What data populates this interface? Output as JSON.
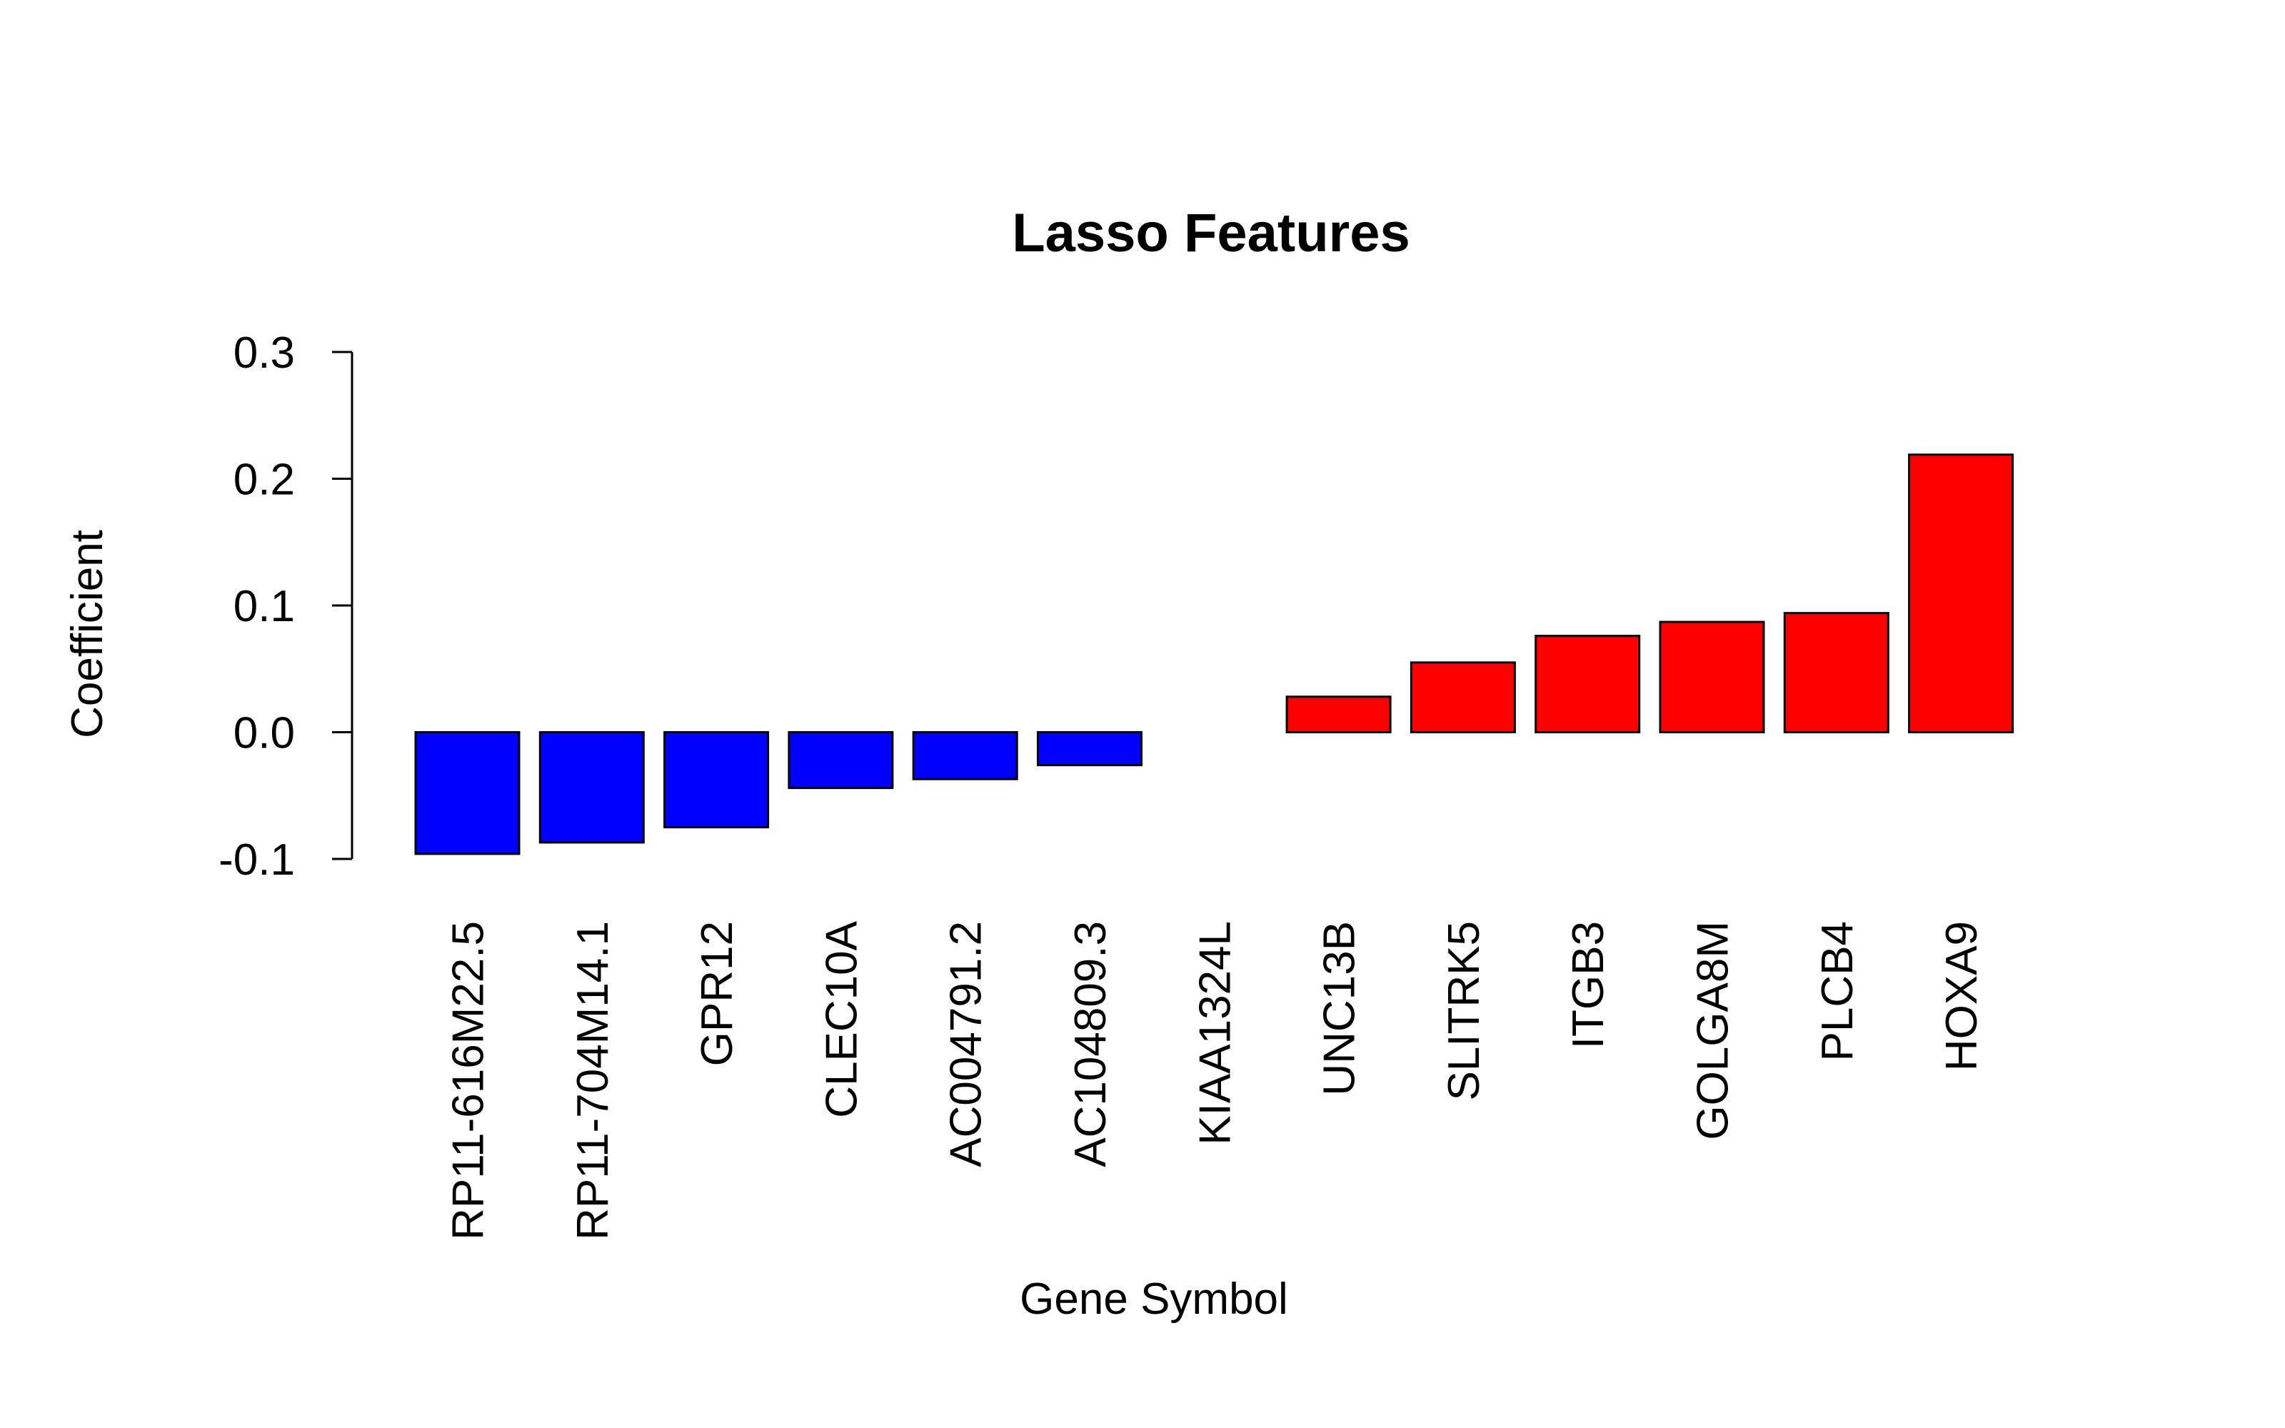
{
  "chart_data": {
    "type": "bar",
    "title": "Lasso Features",
    "xlabel": "Gene Symbol",
    "ylabel": "Coefficient",
    "ylim": [
      -0.1,
      0.3
    ],
    "yticks": [
      "-0.1",
      "0.0",
      "0.1",
      "0.2",
      "0.3"
    ],
    "grid": false,
    "categories": [
      "RP11-616M22.5",
      "RP11-704M14.1",
      "GPR12",
      "CLEC10A",
      "AC004791.2",
      "AC104809.3",
      "KIAA1324L",
      "UNC13B",
      "SLITRK5",
      "ITGB3",
      "GOLGA8M",
      "PLCB4",
      "HOXA9"
    ],
    "values": [
      -0.096,
      -0.087,
      -0.075,
      -0.044,
      -0.037,
      -0.026,
      0.0,
      0.028,
      0.055,
      0.076,
      0.087,
      0.094,
      0.219
    ],
    "colors": {
      "negative": "#0000ff",
      "positive": "#ff0000",
      "outline": "#000000"
    }
  }
}
